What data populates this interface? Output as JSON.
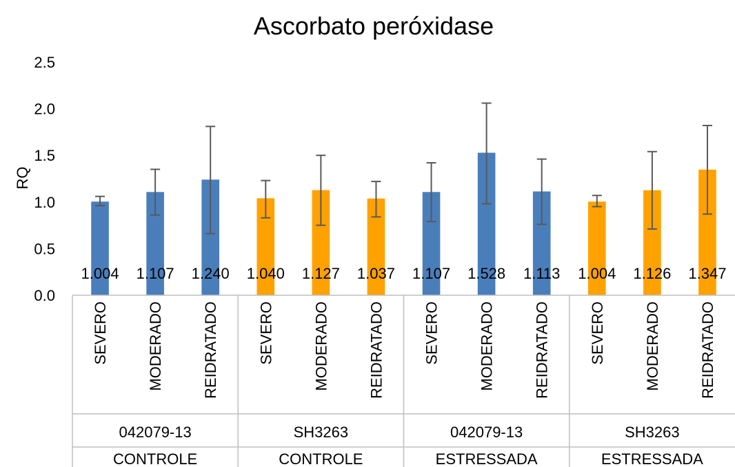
{
  "chart_data": {
    "type": "bar",
    "title": "Ascorbato peróxidase",
    "ylabel": "RQ",
    "xlabel": "",
    "ylim": [
      0,
      2.5
    ],
    "yticks": [
      "0.0",
      "0.5",
      "1.0",
      "1.5",
      "2.0",
      "2.5"
    ],
    "grid": false,
    "legend": "none",
    "colors": {
      "blue": "#4a7ebb",
      "orange": "#ffa200",
      "error_bar": "#595959",
      "axis": "#bfbfbf"
    },
    "groups": [
      {
        "condition": "CONTROLE",
        "genotype": "042079-13",
        "color": "blue",
        "bars": [
          {
            "label": "SEVERO",
            "value": 1.004,
            "value_label": "1.004",
            "err_low": 0.96,
            "err_high": 1.06
          },
          {
            "label": "MODERADO",
            "value": 1.107,
            "value_label": "1.107",
            "err_low": 0.86,
            "err_high": 1.35
          },
          {
            "label": "REIDRATADO",
            "value": 1.24,
            "value_label": "1.240",
            "err_low": 0.66,
            "err_high": 1.81
          }
        ]
      },
      {
        "condition": "CONTROLE",
        "genotype": "SH3263",
        "color": "orange",
        "bars": [
          {
            "label": "SEVERO",
            "value": 1.04,
            "value_label": "1.040",
            "err_low": 0.83,
            "err_high": 1.23
          },
          {
            "label": "MODERADO",
            "value": 1.127,
            "value_label": "1.127",
            "err_low": 0.75,
            "err_high": 1.5
          },
          {
            "label": "REIDRATADO",
            "value": 1.037,
            "value_label": "1.037",
            "err_low": 0.84,
            "err_high": 1.22
          }
        ]
      },
      {
        "condition": "ESTRESSADA",
        "genotype": "042079-13",
        "color": "blue",
        "bars": [
          {
            "label": "SEVERO",
            "value": 1.107,
            "value_label": "1.107",
            "err_low": 0.79,
            "err_high": 1.42
          },
          {
            "label": "MODERADO",
            "value": 1.528,
            "value_label": "1.528",
            "err_low": 0.98,
            "err_high": 2.06
          },
          {
            "label": "REIDRATADO",
            "value": 1.113,
            "value_label": "1.113",
            "err_low": 0.76,
            "err_high": 1.46
          }
        ]
      },
      {
        "condition": "ESTRESSADA",
        "genotype": "SH3263",
        "color": "orange",
        "bars": [
          {
            "label": "SEVERO",
            "value": 1.004,
            "value_label": "1.004",
            "err_low": 0.95,
            "err_high": 1.07
          },
          {
            "label": "MODERADO",
            "value": 1.126,
            "value_label": "1.126",
            "err_low": 0.71,
            "err_high": 1.54
          },
          {
            "label": "REIDRATADO",
            "value": 1.347,
            "value_label": "1.347",
            "err_low": 0.87,
            "err_high": 1.82
          }
        ]
      }
    ]
  }
}
